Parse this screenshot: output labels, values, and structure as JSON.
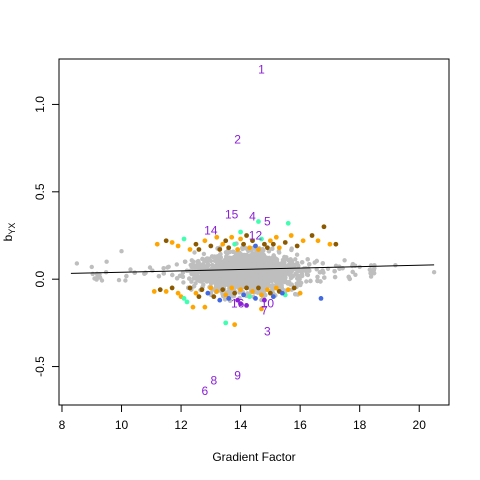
{
  "chart_data": {
    "type": "scatter",
    "xlabel": "Gradient Factor",
    "ylabel_main": "b",
    "ylabel_sub": "YX",
    "xlim": [
      7.9,
      21.0
    ],
    "ylim": [
      -0.72,
      1.26
    ],
    "xticks": [
      8,
      10,
      12,
      14,
      16,
      18,
      20
    ],
    "yticks": [
      -0.5,
      0.0,
      0.5,
      1.0
    ],
    "xtick_labels": [
      "8",
      "10",
      "12",
      "14",
      "16",
      "18",
      "20"
    ],
    "ytick_labels": [
      "-0.5",
      "0.0",
      "0.5",
      "1.0"
    ],
    "grid": false,
    "legend": "none",
    "colors": {
      "background_points": "#BEBEBE",
      "brown": "#8B5A00",
      "orange": "#FFA500",
      "blue": "#4169E1",
      "cyan": "#40FFB0",
      "purple": "#8B1FD6",
      "line": "#000000"
    },
    "regression_line": {
      "x": [
        8.3,
        20.5
      ],
      "y": [
        0.033,
        0.082
      ]
    },
    "labeled_points": [
      {
        "label": "1",
        "x": 14.7,
        "y": 1.2
      },
      {
        "label": "2",
        "x": 13.9,
        "y": 0.8
      },
      {
        "label": "15",
        "x": 13.7,
        "y": 0.37
      },
      {
        "label": "4",
        "x": 14.4,
        "y": 0.36
      },
      {
        "label": "5",
        "x": 14.9,
        "y": 0.33
      },
      {
        "label": "14",
        "x": 13.0,
        "y": 0.28
      },
      {
        "label": "12",
        "x": 14.5,
        "y": 0.25
      },
      {
        "label": "16",
        "x": 13.9,
        "y": -0.14
      },
      {
        "label": "10",
        "x": 14.9,
        "y": -0.14
      },
      {
        "label": "7",
        "x": 14.8,
        "y": -0.18
      },
      {
        "label": "3",
        "x": 14.9,
        "y": -0.3
      },
      {
        "label": "9",
        "x": 13.9,
        "y": -0.55
      },
      {
        "label": "8",
        "x": 13.1,
        "y": -0.58
      },
      {
        "label": "6",
        "x": 12.8,
        "y": -0.64
      }
    ],
    "highlight_points": [
      {
        "x": 11.2,
        "y": 0.2,
        "c": "orange"
      },
      {
        "x": 11.5,
        "y": 0.22,
        "c": "brown"
      },
      {
        "x": 11.7,
        "y": 0.21,
        "c": "orange"
      },
      {
        "x": 11.9,
        "y": 0.19,
        "c": "orange"
      },
      {
        "x": 12.1,
        "y": 0.23,
        "c": "cyan"
      },
      {
        "x": 12.3,
        "y": 0.17,
        "c": "orange"
      },
      {
        "x": 12.5,
        "y": 0.2,
        "c": "brown"
      },
      {
        "x": 12.6,
        "y": 0.17,
        "c": "brown"
      },
      {
        "x": 12.8,
        "y": 0.22,
        "c": "orange"
      },
      {
        "x": 13.0,
        "y": 0.19,
        "c": "brown"
      },
      {
        "x": 13.2,
        "y": 0.24,
        "c": "orange"
      },
      {
        "x": 13.3,
        "y": 0.17,
        "c": "brown"
      },
      {
        "x": 13.4,
        "y": 0.2,
        "c": "orange"
      },
      {
        "x": 13.5,
        "y": 0.22,
        "c": "brown"
      },
      {
        "x": 13.6,
        "y": 0.18,
        "c": "brown"
      },
      {
        "x": 13.7,
        "y": 0.24,
        "c": "orange"
      },
      {
        "x": 13.8,
        "y": 0.2,
        "c": "cyan"
      },
      {
        "x": 13.9,
        "y": 0.17,
        "c": "orange"
      },
      {
        "x": 14.0,
        "y": 0.23,
        "c": "orange"
      },
      {
        "x": 14.1,
        "y": 0.2,
        "c": "brown"
      },
      {
        "x": 14.2,
        "y": 0.25,
        "c": "brown"
      },
      {
        "x": 14.3,
        "y": 0.18,
        "c": "orange"
      },
      {
        "x": 14.4,
        "y": 0.22,
        "c": "brown"
      },
      {
        "x": 14.5,
        "y": 0.19,
        "c": "blue"
      },
      {
        "x": 14.6,
        "y": 0.17,
        "c": "orange"
      },
      {
        "x": 14.7,
        "y": 0.23,
        "c": "cyan"
      },
      {
        "x": 14.8,
        "y": 0.2,
        "c": "brown"
      },
      {
        "x": 14.9,
        "y": 0.18,
        "c": "brown"
      },
      {
        "x": 15.0,
        "y": 0.22,
        "c": "orange"
      },
      {
        "x": 15.1,
        "y": 0.2,
        "c": "brown"
      },
      {
        "x": 15.2,
        "y": 0.24,
        "c": "orange"
      },
      {
        "x": 15.3,
        "y": 0.18,
        "c": "orange"
      },
      {
        "x": 15.5,
        "y": 0.21,
        "c": "brown"
      },
      {
        "x": 15.6,
        "y": 0.32,
        "c": "cyan"
      },
      {
        "x": 15.7,
        "y": 0.25,
        "c": "orange"
      },
      {
        "x": 15.9,
        "y": 0.19,
        "c": "brown"
      },
      {
        "x": 16.1,
        "y": 0.22,
        "c": "orange"
      },
      {
        "x": 16.4,
        "y": 0.25,
        "c": "brown"
      },
      {
        "x": 16.6,
        "y": 0.22,
        "c": "orange"
      },
      {
        "x": 16.8,
        "y": 0.3,
        "c": "brown"
      },
      {
        "x": 17.0,
        "y": 0.2,
        "c": "orange"
      },
      {
        "x": 17.2,
        "y": 0.2,
        "c": "brown"
      },
      {
        "x": 14.6,
        "y": 0.33,
        "c": "cyan"
      },
      {
        "x": 14.0,
        "y": 0.27,
        "c": "cyan"
      },
      {
        "x": 11.1,
        "y": -0.07,
        "c": "orange"
      },
      {
        "x": 11.3,
        "y": -0.06,
        "c": "brown"
      },
      {
        "x": 11.5,
        "y": -0.07,
        "c": "orange"
      },
      {
        "x": 11.7,
        "y": -0.05,
        "c": "brown"
      },
      {
        "x": 11.9,
        "y": -0.08,
        "c": "orange"
      },
      {
        "x": 12.0,
        "y": -0.1,
        "c": "orange"
      },
      {
        "x": 12.1,
        "y": -0.11,
        "c": "cyan"
      },
      {
        "x": 12.3,
        "y": -0.05,
        "c": "brown"
      },
      {
        "x": 12.5,
        "y": -0.08,
        "c": "orange"
      },
      {
        "x": 12.6,
        "y": -0.1,
        "c": "brown"
      },
      {
        "x": 12.7,
        "y": -0.06,
        "c": "brown"
      },
      {
        "x": 12.8,
        "y": -0.16,
        "c": "orange"
      },
      {
        "x": 12.9,
        "y": -0.08,
        "c": "blue"
      },
      {
        "x": 13.0,
        "y": -0.05,
        "c": "orange"
      },
      {
        "x": 13.1,
        "y": -0.1,
        "c": "brown"
      },
      {
        "x": 13.2,
        "y": -0.07,
        "c": "orange"
      },
      {
        "x": 13.3,
        "y": -0.12,
        "c": "blue"
      },
      {
        "x": 13.4,
        "y": -0.06,
        "c": "brown"
      },
      {
        "x": 13.5,
        "y": -0.09,
        "c": "orange"
      },
      {
        "x": 13.6,
        "y": -0.11,
        "c": "blue"
      },
      {
        "x": 13.7,
        "y": -0.05,
        "c": "orange"
      },
      {
        "x": 13.8,
        "y": -0.08,
        "c": "brown"
      },
      {
        "x": 13.9,
        "y": -0.12,
        "c": "purple"
      },
      {
        "x": 14.0,
        "y": -0.06,
        "c": "orange"
      },
      {
        "x": 14.1,
        "y": -0.09,
        "c": "blue"
      },
      {
        "x": 14.2,
        "y": -0.05,
        "c": "brown"
      },
      {
        "x": 14.3,
        "y": -0.1,
        "c": "cyan"
      },
      {
        "x": 14.4,
        "y": -0.07,
        "c": "orange"
      },
      {
        "x": 14.5,
        "y": -0.11,
        "c": "blue"
      },
      {
        "x": 14.6,
        "y": -0.05,
        "c": "brown"
      },
      {
        "x": 14.7,
        "y": -0.09,
        "c": "orange"
      },
      {
        "x": 14.8,
        "y": -0.12,
        "c": "purple"
      },
      {
        "x": 14.9,
        "y": -0.06,
        "c": "orange"
      },
      {
        "x": 15.0,
        "y": -0.08,
        "c": "brown"
      },
      {
        "x": 15.1,
        "y": -0.1,
        "c": "blue"
      },
      {
        "x": 15.2,
        "y": -0.05,
        "c": "orange"
      },
      {
        "x": 15.3,
        "y": -0.07,
        "c": "brown"
      },
      {
        "x": 15.5,
        "y": -0.09,
        "c": "cyan"
      },
      {
        "x": 15.6,
        "y": -0.06,
        "c": "orange"
      },
      {
        "x": 15.8,
        "y": -0.05,
        "c": "brown"
      },
      {
        "x": 16.0,
        "y": -0.08,
        "c": "orange"
      },
      {
        "x": 16.7,
        "y": -0.11,
        "c": "blue"
      },
      {
        "x": 12.2,
        "y": -0.13,
        "c": "cyan"
      },
      {
        "x": 12.4,
        "y": -0.16,
        "c": "orange"
      },
      {
        "x": 13.5,
        "y": -0.25,
        "c": "cyan"
      },
      {
        "x": 13.8,
        "y": -0.26,
        "c": "orange"
      },
      {
        "x": 14.2,
        "y": -0.15,
        "c": "purple"
      },
      {
        "x": 14.0,
        "y": -0.14,
        "c": "purple"
      },
      {
        "x": 14.7,
        "y": -0.17,
        "c": "orange"
      },
      {
        "x": 15.4,
        "y": -0.08,
        "c": "blue"
      }
    ]
  }
}
